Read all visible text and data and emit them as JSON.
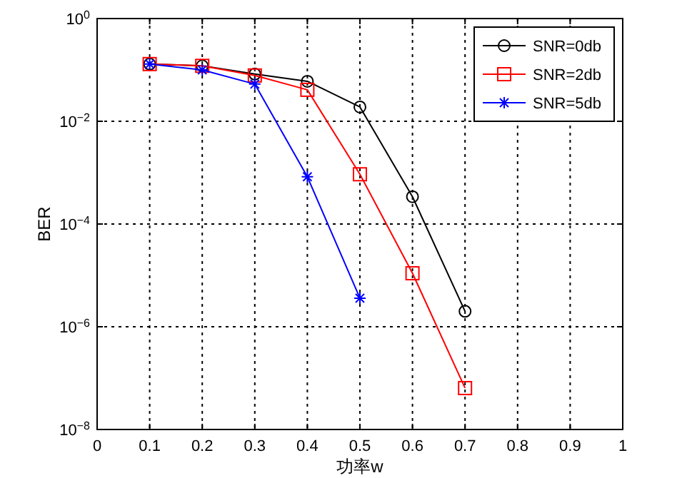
{
  "chart_data": {
    "type": "line",
    "xlabel": "功率w",
    "ylabel": "BER",
    "x": [
      0.1,
      0.2,
      0.3,
      0.4,
      0.5,
      0.6,
      0.7
    ],
    "series": [
      {
        "name": "SNR=0db",
        "color": "#000000",
        "marker": "circle",
        "values": [
          0.13,
          0.12,
          0.083,
          0.06,
          0.019,
          0.00034,
          2e-06
        ]
      },
      {
        "name": "SNR=2db",
        "color": "#ff0000",
        "marker": "square",
        "values": [
          0.13,
          0.12,
          0.078,
          0.041,
          0.00093,
          1.1e-05,
          6.4e-08
        ]
      },
      {
        "name": "SNR=5db",
        "color": "#0000ff",
        "marker": "cross",
        "values": [
          0.13,
          0.1,
          0.053,
          0.00083,
          3.6e-06,
          null,
          null
        ]
      }
    ],
    "log": "y",
    "xlim": [
      0,
      1
    ],
    "ylim": [
      1e-08,
      1
    ],
    "xticks": [
      0,
      0.1,
      0.2,
      0.3,
      0.4,
      0.5,
      0.6,
      0.7,
      0.8,
      0.9,
      1
    ],
    "yticks": [
      {
        "value": 1e-08,
        "label": "10$^{−8}$"
      },
      {
        "value": 1e-06,
        "label": "10$^{−6}$"
      },
      {
        "value": 0.0001,
        "label": "10$^{−4}$"
      },
      {
        "value": 0.01,
        "label": "10$^{−2}$"
      },
      {
        "value": 1,
        "label": "10$^{0}$"
      }
    ],
    "grid": true,
    "legend": "top right",
    "line_style": "solid"
  }
}
